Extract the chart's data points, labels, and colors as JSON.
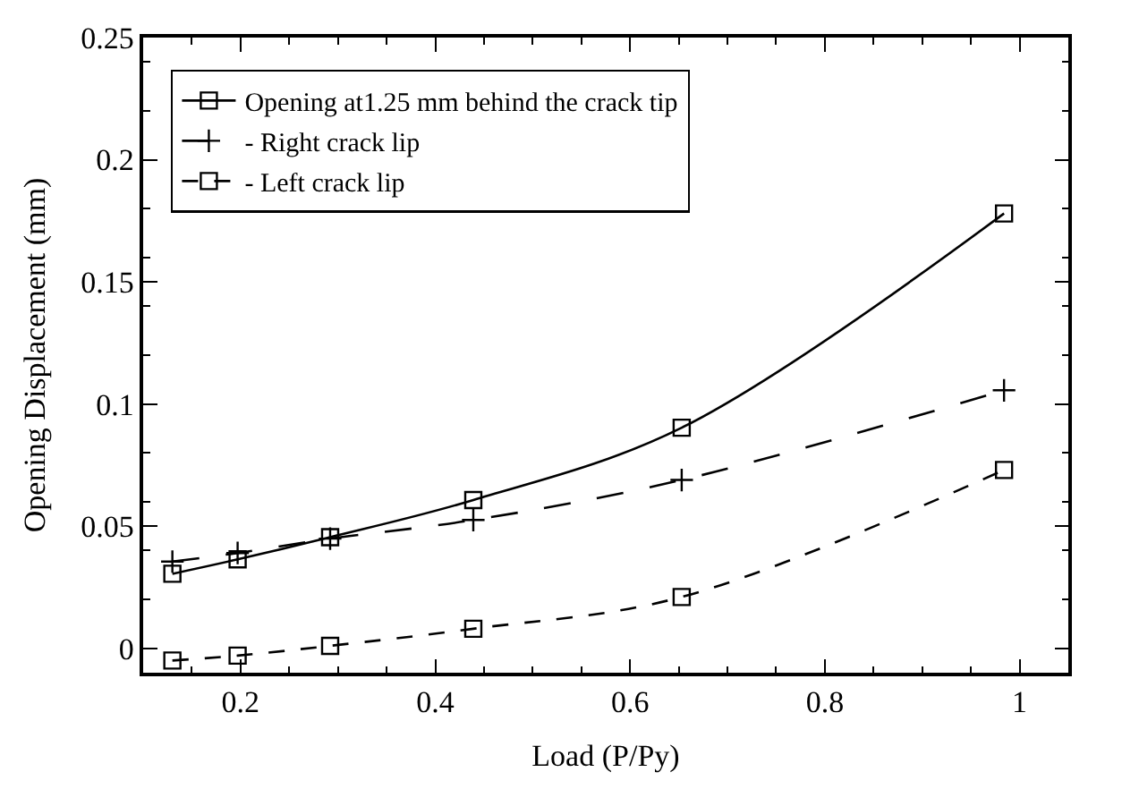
{
  "chart_data": {
    "type": "line",
    "xlabel": "Load (P/Py)",
    "ylabel": "Opening Displacement (mm)",
    "x": [
      0.13,
      0.197,
      0.292,
      0.439,
      0.653,
      0.984
    ],
    "series": [
      {
        "name": "Opening at1.25 mm behind the crack tip",
        "color": "#000000",
        "marker": "square",
        "line_style": "solid",
        "values": [
          0.0305,
          0.0364,
          0.0455,
          0.0607,
          0.0903,
          0.178
        ]
      },
      {
        "name": "- Right crack lip",
        "color": "#000000",
        "marker": "cross",
        "line_style": "dashed",
        "values": [
          0.0355,
          0.039,
          0.0449,
          0.0525,
          0.0689,
          0.1056
        ]
      },
      {
        "name": "- Left crack lip",
        "color": "#000000",
        "marker": "square",
        "line_style": "dashed",
        "values": [
          -0.005,
          -0.003,
          0.001,
          0.008,
          0.021,
          0.073
        ]
      }
    ],
    "xlim": [
      0.1,
      1.05
    ],
    "xticks": [
      0.2,
      0.4,
      0.6,
      0.8,
      1
    ],
    "ylim": [
      -0.01,
      0.25
    ],
    "yticks": [
      0,
      0.05,
      0.1,
      0.15,
      0.2,
      0.25
    ],
    "grid": false,
    "legend": "top left"
  }
}
